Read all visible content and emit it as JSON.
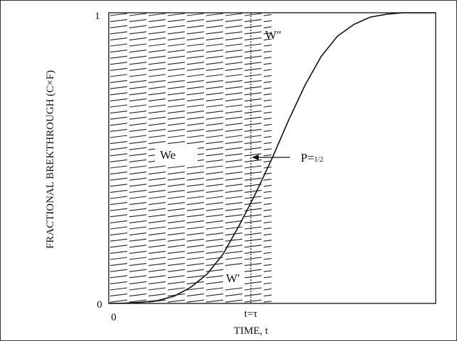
{
  "chart_data": {
    "type": "line",
    "xlabel": "TIME, t",
    "ylabel": "FRACTIONAL BREKTHROUGH (C×F)",
    "x_ticks": [
      "0",
      "t=τ"
    ],
    "y_ticks": [
      "0",
      "1"
    ],
    "xlim": [
      0,
      2
    ],
    "ylim": [
      0,
      1
    ],
    "tau": 1,
    "series": [
      {
        "name": "",
        "x": [
          0,
          0.1,
          0.2,
          0.3,
          0.4,
          0.5,
          0.6,
          0.7,
          0.8,
          0.9,
          1.0,
          1.1,
          1.2,
          1.3,
          1.4,
          1.5,
          1.6,
          1.7,
          1.8,
          1.9,
          2.0
        ],
        "y": [
          0,
          0.001,
          0.004,
          0.01,
          0.025,
          0.055,
          0.1,
          0.17,
          0.27,
          0.38,
          0.5,
          0.63,
          0.75,
          0.85,
          0.92,
          0.96,
          0.985,
          0.995,
          1.0,
          1.0,
          1.0
        ]
      }
    ],
    "annotations": {
      "w_double_prime": "W″",
      "we": "We",
      "w_prime": "W′",
      "p_half": "P=",
      "p_half_sub": "1/2"
    }
  }
}
